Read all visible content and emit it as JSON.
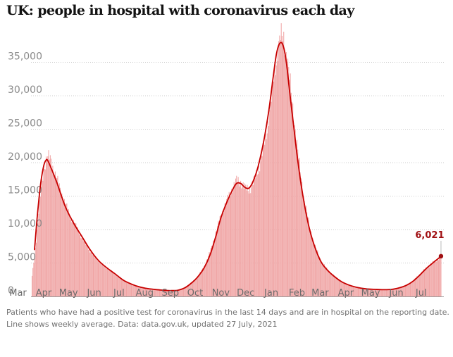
{
  "title": "UK: people in hospital with coronavirus each day",
  "footnote": {
    "line1": "Patients who have had a positive test for coronavirus in the last 14 days and are in hospital on the reporting date.",
    "line2": "Line shows weekly average. Data: data.gov.uk, updated 27 July, 2021"
  },
  "colors": {
    "bars": "#f0a5a5",
    "line": "#c70000",
    "annotation": "#a00f12",
    "gridline": "#cccccc"
  },
  "chart_data": {
    "type": "bar",
    "overlay_type": "line",
    "x_unit": "days since 2020-03-18",
    "ylim": [
      0,
      40000
    ],
    "grid": true,
    "yticks": [
      {
        "value": 0,
        "label": "0"
      },
      {
        "value": 5000,
        "label": "5,000"
      },
      {
        "value": 10000,
        "label": "10,000"
      },
      {
        "value": 15000,
        "label": "15,000"
      },
      {
        "value": 20000,
        "label": "20,000"
      },
      {
        "value": 25000,
        "label": "25,000"
      },
      {
        "value": 30000,
        "label": "30,000"
      },
      {
        "value": 35000,
        "label": "35,000"
      }
    ],
    "xticks": [
      {
        "day": -17,
        "label": "Mar"
      },
      {
        "day": 14,
        "label": "Apr"
      },
      {
        "day": 44,
        "label": "May"
      },
      {
        "day": 75,
        "label": "Jun"
      },
      {
        "day": 105,
        "label": "Jul"
      },
      {
        "day": 136,
        "label": "Aug"
      },
      {
        "day": 167,
        "label": "Sep"
      },
      {
        "day": 197,
        "label": "Oct"
      },
      {
        "day": 228,
        "label": "Nov"
      },
      {
        "day": 258,
        "label": "Dec"
      },
      {
        "day": 289,
        "label": "Jan"
      },
      {
        "day": 320,
        "label": "Feb"
      },
      {
        "day": 348,
        "label": "Mar"
      },
      {
        "day": 379,
        "label": "Apr"
      },
      {
        "day": 409,
        "label": "May"
      },
      {
        "day": 440,
        "label": "Jun"
      },
      {
        "day": 470,
        "label": "Jul"
      }
    ],
    "daily_bars": {
      "name": "Patients in hospital",
      "first_day": 0,
      "last_day": 494,
      "anchors": [
        [
          0,
          3000
        ],
        [
          5,
          8500
        ],
        [
          10,
          15000
        ],
        [
          14,
          19000
        ],
        [
          18,
          21000
        ],
        [
          22,
          20500
        ],
        [
          30,
          17500
        ],
        [
          38,
          14500
        ],
        [
          46,
          12000
        ],
        [
          55,
          10000
        ],
        [
          65,
          7800
        ],
        [
          75,
          6000
        ],
        [
          85,
          4700
        ],
        [
          95,
          3800
        ],
        [
          105,
          2900
        ],
        [
          115,
          2100
        ],
        [
          125,
          1600
        ],
        [
          135,
          1250
        ],
        [
          145,
          1050
        ],
        [
          155,
          950
        ],
        [
          165,
          820
        ],
        [
          175,
          900
        ],
        [
          185,
          1300
        ],
        [
          193,
          2100
        ],
        [
          200,
          2900
        ],
        [
          208,
          4500
        ],
        [
          215,
          6600
        ],
        [
          222,
          9500
        ],
        [
          228,
          12000
        ],
        [
          235,
          14200
        ],
        [
          242,
          16200
        ],
        [
          247,
          17300
        ],
        [
          252,
          17100
        ],
        [
          258,
          16100
        ],
        [
          263,
          16000
        ],
        [
          268,
          17200
        ],
        [
          275,
          19700
        ],
        [
          282,
          23500
        ],
        [
          288,
          28500
        ],
        [
          292,
          32500
        ],
        [
          296,
          36500
        ],
        [
          300,
          38700
        ],
        [
          304,
          38500
        ],
        [
          308,
          35800
        ],
        [
          312,
          31500
        ],
        [
          317,
          26000
        ],
        [
          322,
          20500
        ],
        [
          328,
          15000
        ],
        [
          335,
          10500
        ],
        [
          342,
          7400
        ],
        [
          350,
          5100
        ],
        [
          358,
          3800
        ],
        [
          366,
          2900
        ],
        [
          375,
          2100
        ],
        [
          385,
          1600
        ],
        [
          395,
          1280
        ],
        [
          405,
          1120
        ],
        [
          415,
          1050
        ],
        [
          425,
          1020
        ],
        [
          435,
          1080
        ],
        [
          445,
          1350
        ],
        [
          452,
          1700
        ],
        [
          460,
          2300
        ],
        [
          468,
          3300
        ],
        [
          476,
          4200
        ],
        [
          484,
          5000
        ],
        [
          490,
          5600
        ],
        [
          494,
          6021
        ]
      ]
    },
    "weekly_average": {
      "name": "Weekly average",
      "points": [
        [
          3,
          7000
        ],
        [
          6,
          11500
        ],
        [
          10,
          16500
        ],
        [
          14,
          19500
        ],
        [
          17,
          20400
        ],
        [
          19,
          20300
        ],
        [
          23,
          19200
        ],
        [
          30,
          17000
        ],
        [
          40,
          13500
        ],
        [
          50,
          11000
        ],
        [
          60,
          9000
        ],
        [
          70,
          7000
        ],
        [
          80,
          5400
        ],
        [
          90,
          4300
        ],
        [
          100,
          3400
        ],
        [
          110,
          2450
        ],
        [
          120,
          1850
        ],
        [
          130,
          1420
        ],
        [
          140,
          1170
        ],
        [
          150,
          1020
        ],
        [
          160,
          920
        ],
        [
          168,
          870
        ],
        [
          176,
          930
        ],
        [
          184,
          1250
        ],
        [
          192,
          1950
        ],
        [
          200,
          2900
        ],
        [
          208,
          4300
        ],
        [
          215,
          6200
        ],
        [
          222,
          9000
        ],
        [
          228,
          11700
        ],
        [
          235,
          14000
        ],
        [
          242,
          15900
        ],
        [
          247,
          16900
        ],
        [
          252,
          16900
        ],
        [
          257,
          16300
        ],
        [
          262,
          16200
        ],
        [
          267,
          17200
        ],
        [
          273,
          19400
        ],
        [
          280,
          23300
        ],
        [
          286,
          27800
        ],
        [
          291,
          32500
        ],
        [
          295,
          36100
        ],
        [
          299,
          37800
        ],
        [
          303,
          37600
        ],
        [
          307,
          35200
        ],
        [
          311,
          30800
        ],
        [
          316,
          25500
        ],
        [
          321,
          20300
        ],
        [
          327,
          15200
        ],
        [
          334,
          10700
        ],
        [
          341,
          7600
        ],
        [
          349,
          5200
        ],
        [
          357,
          3900
        ],
        [
          365,
          3000
        ],
        [
          374,
          2200
        ],
        [
          384,
          1650
        ],
        [
          394,
          1320
        ],
        [
          404,
          1130
        ],
        [
          414,
          1060
        ],
        [
          424,
          1010
        ],
        [
          434,
          1050
        ],
        [
          444,
          1300
        ],
        [
          452,
          1650
        ],
        [
          460,
          2250
        ],
        [
          468,
          3150
        ],
        [
          476,
          4150
        ],
        [
          484,
          5000
        ],
        [
          490,
          5600
        ],
        [
          494,
          6021
        ]
      ]
    },
    "annotation": {
      "day": 494,
      "value": 6021,
      "label": "6,021"
    }
  }
}
